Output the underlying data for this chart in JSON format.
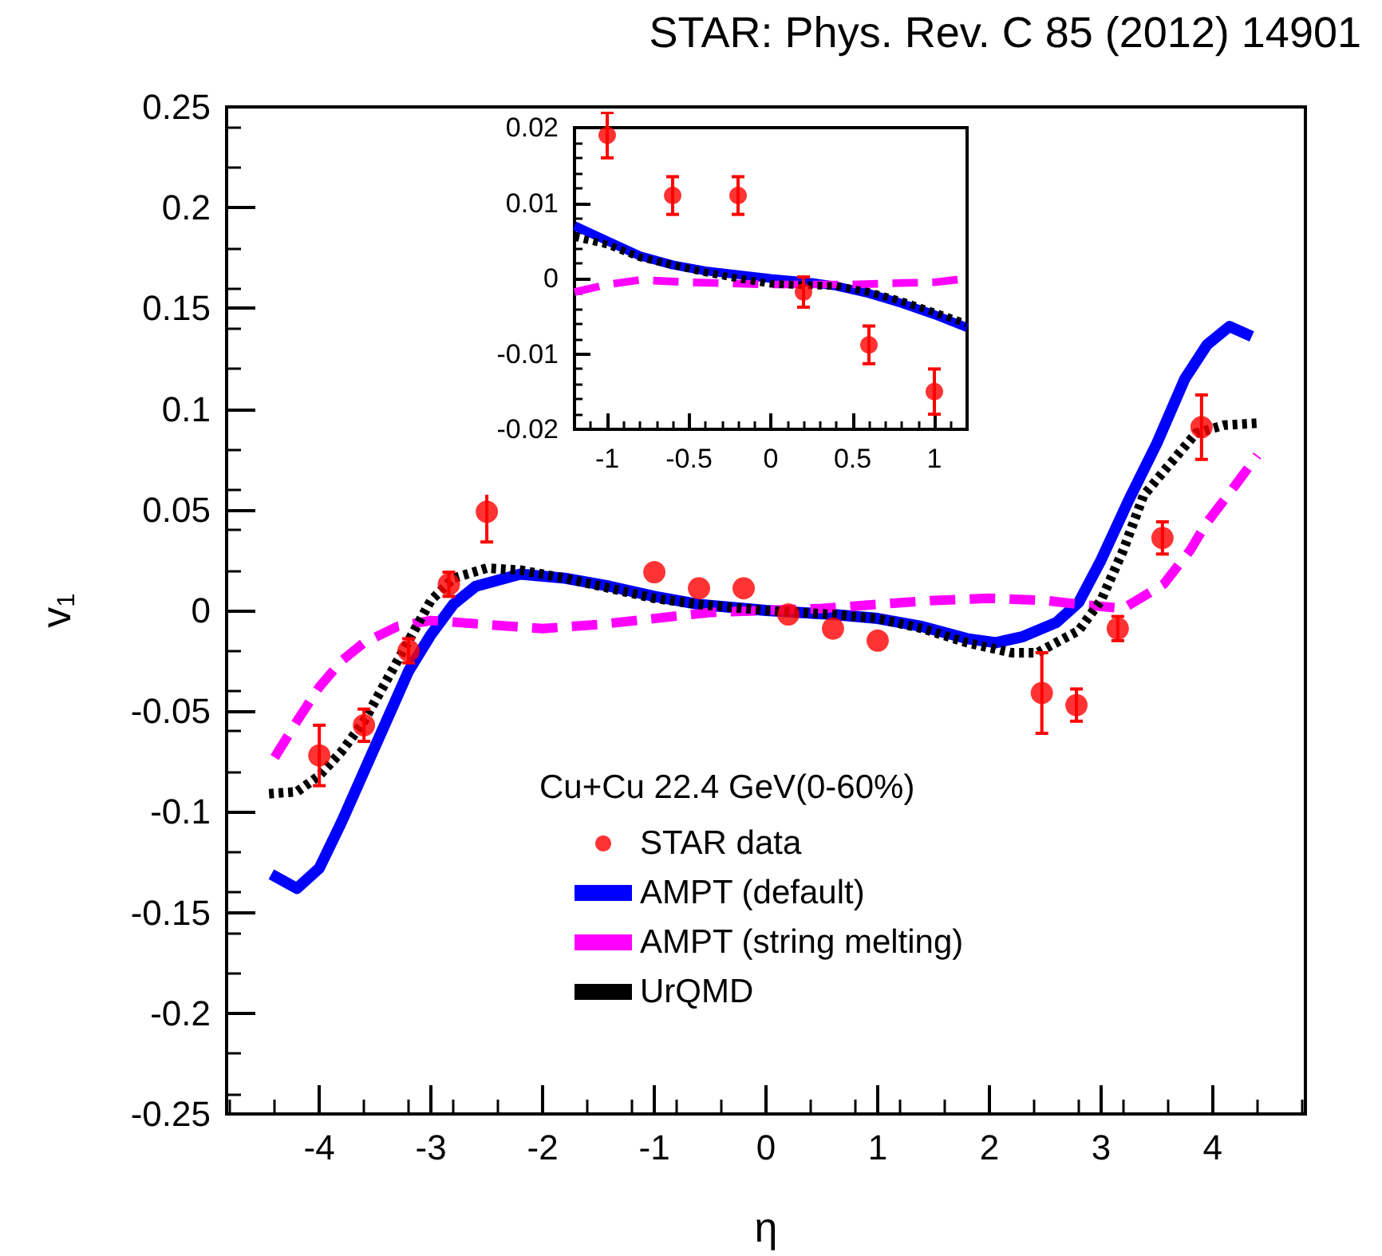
{
  "chart_data": [
    {
      "type": "line",
      "title": "STAR: Phys. Rev. C 85 (2012) 14901",
      "xlabel": "η",
      "ylabel": "v$_{1}$",
      "legend_title": "Cu+Cu 22.4 GeV(0-60%)",
      "legend": "bottom right",
      "grid": false,
      "xlim": [
        -4.83,
        4.83
      ],
      "xticks": [
        -4,
        -3,
        -2,
        -1,
        0,
        1,
        2,
        3,
        4
      ],
      "ylim": [
        -0.25,
        0.25
      ],
      "yticks": [
        -0.25,
        -0.2,
        -0.15,
        -0.1,
        -0.05,
        0,
        0.05,
        0.1,
        0.15,
        0.2,
        0.25
      ],
      "series": [
        {
          "name": "STAR data",
          "type": "scatter",
          "marker": "circle",
          "color": "#ff0000",
          "x": [
            -4.0,
            -3.6,
            -3.2,
            -2.84,
            -2.5,
            -1.0,
            -0.6,
            -0.2,
            0.2,
            0.6,
            1.0,
            2.47,
            2.78,
            3.15,
            3.55,
            3.9
          ],
          "values": [
            -0.072,
            -0.057,
            -0.02,
            0.013,
            0.049,
            0.019,
            0.011,
            0.011,
            -0.002,
            -0.009,
            -0.015,
            -0.041,
            -0.047,
            -0.009,
            0.036,
            0.091
          ],
          "errors": [
            0.015,
            0.008,
            0.006,
            0.006,
            0.015,
            null,
            null,
            null,
            null,
            null,
            null,
            0.02,
            0.008,
            0.006,
            0.008,
            0.016
          ]
        },
        {
          "name": "AMPT (default)",
          "type": "line",
          "marker": "none",
          "line_style": "solid",
          "color": "#0000ff",
          "x": [
            -4.43,
            -4.2,
            -4.0,
            -3.8,
            -3.6,
            -3.4,
            -3.2,
            -3.0,
            -2.8,
            -2.6,
            -2.2,
            -1.8,
            -1.4,
            -1.0,
            -0.6,
            0,
            0.6,
            1.0,
            1.4,
            1.8,
            2.06,
            2.3,
            2.6,
            2.8,
            3.0,
            3.25,
            3.5,
            3.75,
            3.95,
            4.15,
            4.35
          ],
          "values": [
            -0.131,
            -0.138,
            -0.128,
            -0.105,
            -0.08,
            -0.055,
            -0.03,
            -0.012,
            0.003,
            0.012,
            0.018,
            0.016,
            0.012,
            0.007,
            0.003,
            0,
            -0.002,
            -0.004,
            -0.008,
            -0.014,
            -0.016,
            -0.013,
            -0.006,
            0.004,
            0.025,
            0.055,
            0.083,
            0.115,
            0.132,
            0.141,
            0.136
          ]
        },
        {
          "name": "AMPT (string melting)",
          "type": "line",
          "marker": "none",
          "line_style": "dashed",
          "color": "#ff00ff",
          "x": [
            -4.4,
            -4.2,
            -4.0,
            -3.8,
            -3.6,
            -3.3,
            -3.0,
            -2.5,
            -2.0,
            -1.5,
            -1.0,
            -0.5,
            0,
            0.5,
            1.0,
            1.5,
            2.0,
            2.5,
            2.8,
            3.2,
            3.56,
            3.8,
            3.94,
            4.2,
            4.4
          ],
          "values": [
            -0.073,
            -0.055,
            -0.038,
            -0.025,
            -0.016,
            -0.008,
            -0.005,
            -0.007,
            -0.009,
            -0.007,
            -0.004,
            -0.001,
            0,
            0.001,
            0.003,
            0.005,
            0.006,
            0.005,
            0.003,
            0.001,
            0.013,
            0.03,
            0.043,
            0.062,
            0.077
          ]
        },
        {
          "name": "UrQMD",
          "type": "line",
          "marker": "none",
          "line_style": "dotted",
          "color": "#000000",
          "x": [
            -4.45,
            -4.2,
            -4.0,
            -3.8,
            -3.6,
            -3.4,
            -3.2,
            -3.0,
            -2.8,
            -2.5,
            -2.2,
            -1.8,
            -1.4,
            -1.0,
            -0.6,
            0,
            0.6,
            1.0,
            1.4,
            1.8,
            2.2,
            2.43,
            2.8,
            3.0,
            3.2,
            3.38,
            3.56,
            3.85,
            4.1,
            4.4
          ],
          "values": [
            -0.091,
            -0.09,
            -0.082,
            -0.07,
            -0.055,
            -0.035,
            -0.015,
            0.005,
            0.016,
            0.021,
            0.02,
            0.016,
            0.011,
            0.006,
            0.003,
            0,
            -0.002,
            -0.004,
            -0.009,
            -0.016,
            -0.021,
            -0.021,
            -0.01,
            0.005,
            0.03,
            0.057,
            0.069,
            0.088,
            0.092,
            0.093
          ]
        }
      ]
    },
    {
      "type": "line",
      "grid": false,
      "legend": false,
      "xlim": [
        -1.2,
        1.2
      ],
      "xticks": [
        -1,
        -0.5,
        0,
        0.5,
        1
      ],
      "ylim": [
        -0.02,
        0.02
      ],
      "yticks": [
        -0.02,
        -0.01,
        0,
        0.01,
        0.02
      ],
      "series": [
        {
          "type": "scatter",
          "marker": "circle",
          "color": "#ff0000",
          "x": [
            -1.0,
            -0.6,
            -0.2,
            0.2,
            0.6,
            1.0
          ],
          "values": [
            0.019,
            0.011,
            0.011,
            -0.0018,
            -0.0088,
            -0.015
          ],
          "errors": [
            0.003,
            0.0025,
            0.0025,
            0.002,
            0.0025,
            0.003
          ]
        },
        {
          "type": "line",
          "marker": "none",
          "line_style": "solid",
          "color": "#0000ff",
          "x": [
            -1.2,
            -1.0,
            -0.8,
            -0.6,
            -0.4,
            -0.2,
            0,
            0.2,
            0.4,
            0.6,
            0.8,
            1.0,
            1.2
          ],
          "values": [
            0.007,
            0.005,
            0.003,
            0.0018,
            0.001,
            0.0005,
            0,
            -0.0004,
            -0.001,
            -0.002,
            -0.0033,
            -0.0048,
            -0.0065
          ]
        },
        {
          "type": "line",
          "marker": "none",
          "line_style": "dashed",
          "color": "#ff00ff",
          "x": [
            -1.2,
            -1.0,
            -0.8,
            -0.5,
            0,
            0.5,
            0.8,
            1.0,
            1.2
          ],
          "values": [
            -0.0018,
            -0.0008,
            -0.0002,
            -0.0005,
            -0.0008,
            -0.0008,
            -0.0006,
            -0.0005,
            0.0
          ]
        },
        {
          "type": "line",
          "marker": "none",
          "line_style": "dotted",
          "color": "#000000",
          "x": [
            -1.2,
            -1.0,
            -0.8,
            -0.6,
            -0.4,
            -0.2,
            0,
            0.2,
            0.4,
            0.6,
            0.8,
            1.0,
            1.2
          ],
          "values": [
            0.0055,
            0.0045,
            0.0028,
            0.0018,
            0.0008,
            0.0,
            -0.0007,
            -0.0009,
            -0.001,
            -0.0018,
            -0.003,
            -0.0045,
            -0.006
          ]
        }
      ]
    }
  ]
}
